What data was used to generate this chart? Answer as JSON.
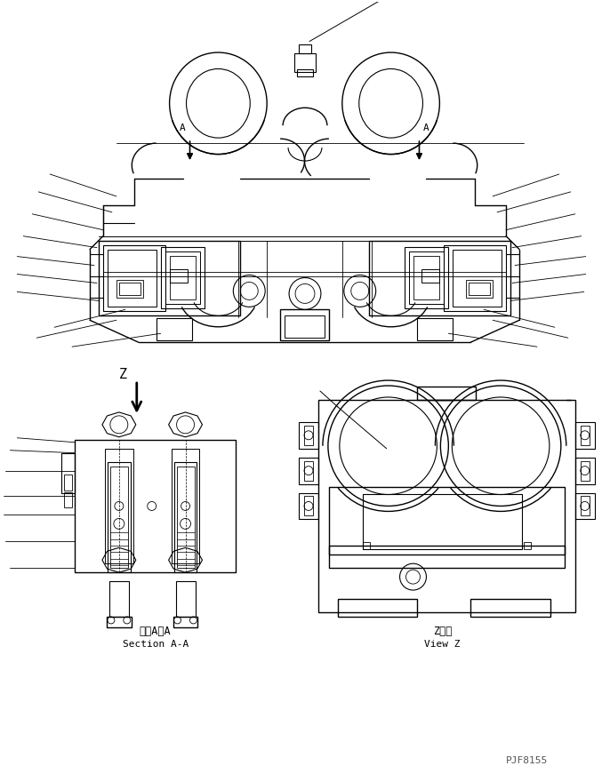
{
  "bg_color": "#ffffff",
  "line_color": "#000000",
  "fig_width": 6.86,
  "fig_height": 8.71,
  "part_id": "PJF8155",
  "section_label_jp": "断面A－A",
  "section_label_en": "Section A-A",
  "view_label_jp": "Z　視",
  "view_label_en": "View Z"
}
